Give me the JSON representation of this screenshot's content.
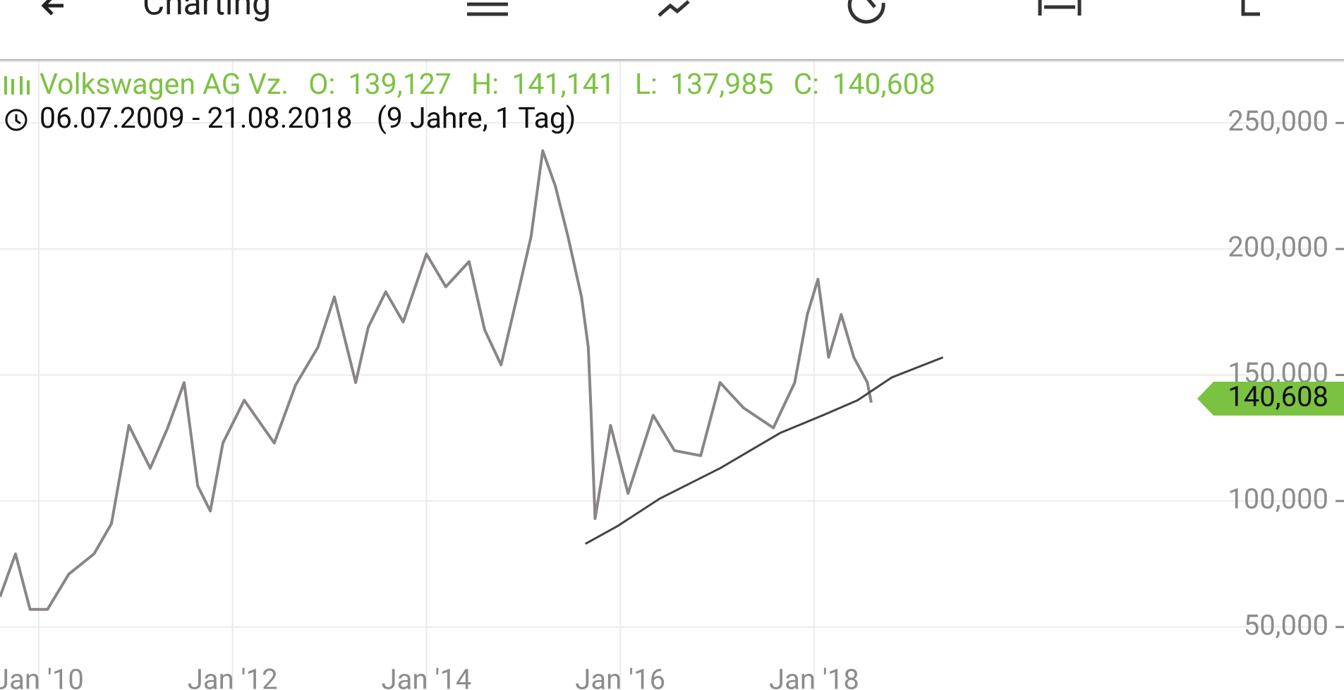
{
  "app_bar": {
    "title": "Charting"
  },
  "header": {
    "instrument": "Volkswagen AG Vz.",
    "open_label": "O:",
    "open": "139,127",
    "high_label": "H:",
    "high": "141,141",
    "low_label": "L:",
    "low": "137,985",
    "close_label": "C:",
    "range": "06.07.2009 - 21.08.2018",
    "duration": "(9 Jahre, 1 Tag)"
  },
  "chart_data": {
    "type": "line",
    "xlim": [
      2009.6,
      2022.07
    ],
    "ylim": [
      25000,
      275000
    ],
    "xticks": [
      {
        "value": 2010,
        "label": "Jan '10"
      },
      {
        "value": 2012,
        "label": "Jan '12"
      },
      {
        "value": 2014,
        "label": "Jan '14"
      },
      {
        "value": 2016,
        "label": "Jan '16"
      },
      {
        "value": 2018,
        "label": "Jan '18"
      }
    ],
    "yticks": [
      {
        "value": 50000,
        "label": "50,000"
      },
      {
        "value": 100000,
        "label": "100,000"
      },
      {
        "value": 150000,
        "label": "150,000"
      },
      {
        "value": 200000,
        "label": "200,000"
      },
      {
        "value": 250000,
        "label": "250,000"
      }
    ],
    "grid": true,
    "last": {
      "value": 140608,
      "label": "140,608",
      "color": "#7cc242"
    },
    "series": [
      {
        "name": "Volkswagen AG Vz.",
        "color": "#8a8585",
        "x": [
          2009.6,
          2009.76,
          2009.91,
          2010.09,
          2010.31,
          2010.57,
          2010.75,
          2010.93,
          2011.15,
          2011.33,
          2011.5,
          2011.64,
          2011.77,
          2011.9,
          2012.12,
          2012.43,
          2012.65,
          2012.88,
          2013.05,
          2013.27,
          2013.4,
          2013.58,
          2013.76,
          2014.0,
          2014.2,
          2014.44,
          2014.6,
          2014.77,
          2014.96,
          2015.08,
          2015.2,
          2015.33,
          2015.46,
          2015.6,
          2015.67,
          2015.7,
          2015.74,
          2015.9,
          2016.08,
          2016.34,
          2016.56,
          2016.83,
          2017.03,
          2017.27,
          2017.58,
          2017.8,
          2017.93,
          2018.04,
          2018.15,
          2018.28,
          2018.41,
          2018.55,
          2018.59
        ],
        "values": [
          62000,
          79000,
          57000,
          57000,
          71000,
          79000,
          91000,
          130000,
          113000,
          129000,
          147000,
          106000,
          96000,
          123000,
          140000,
          123000,
          146000,
          161000,
          181000,
          147000,
          169000,
          183000,
          171000,
          198000,
          185000,
          195000,
          168000,
          154000,
          185000,
          205000,
          239000,
          225000,
          205000,
          181000,
          161000,
          134000,
          93000,
          130000,
          103000,
          134000,
          120000,
          118000,
          147000,
          137000,
          129000,
          147000,
          174000,
          188000,
          157000,
          174000,
          157000,
          147000,
          139000
        ]
      },
      {
        "color": "#444444",
        "x": [
          2015.64,
          2015.97,
          2016.41,
          2017.03,
          2017.65,
          2018.09,
          2018.45,
          2018.8,
          2019.33
        ],
        "values": [
          83000,
          90000,
          101000,
          113000,
          127000,
          134000,
          140000,
          149000,
          157000
        ]
      }
    ]
  }
}
